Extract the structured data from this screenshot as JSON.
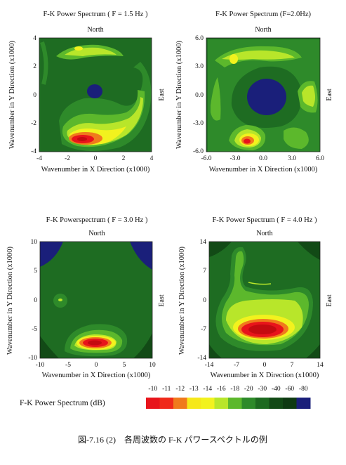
{
  "chart_data": [
    {
      "type": "heatmap",
      "title": "F-K Power Spectrum ( F = 1.5 Hz )",
      "top_label": "North",
      "right_label": "East",
      "xlabel": "Wavenumber in X Direction (x1000)",
      "ylabel": "Wavenumber in Y Direction (x1000)",
      "xlim": [
        -4,
        4
      ],
      "ylim": [
        -4,
        4
      ],
      "xticks": [
        "-4",
        "-2",
        "0",
        "2",
        "4"
      ],
      "yticks": [
        "4",
        "2",
        "0",
        "-2",
        "-4"
      ],
      "peak": {
        "x": -1.0,
        "y": -3.1,
        "level_dB": -10
      }
    },
    {
      "type": "heatmap",
      "title": "F-K Power Spectrum (F=2.0Hz)",
      "top_label": "North",
      "right_label": "East",
      "xlabel": "Wavenumber in X Direction (x1000)",
      "ylabel": "Wavenumber in Y Direction (x1000)",
      "xlim": [
        -6,
        6
      ],
      "ylim": [
        -6,
        6
      ],
      "xticks": [
        "-6.0",
        "-3.0",
        "0.0",
        "3.0",
        "6.0"
      ],
      "yticks": [
        "6.0",
        "3.0",
        "0.0",
        "-3.0",
        "-6.0"
      ],
      "peak": {
        "x": -1.6,
        "y": -5.0,
        "level_dB": -10
      }
    },
    {
      "type": "heatmap",
      "title": "F-K Powerspectrum ( F = 3.0 Hz )",
      "top_label": "North",
      "right_label": "East",
      "xlabel": "Wavenumber in X Direction (x1000)",
      "ylabel": "Wavenumber in Y Direction (x1000)",
      "xlim": [
        -10,
        10
      ],
      "ylim": [
        -10,
        10
      ],
      "xticks": [
        "-10",
        "-5",
        "0",
        "5",
        "10"
      ],
      "yticks": [
        "10",
        "5",
        "0",
        "-5",
        "-10"
      ],
      "peak": {
        "x": -0.5,
        "y": -7.5,
        "level_dB": -10
      }
    },
    {
      "type": "heatmap",
      "title": "F-K Power Spectrum ( F = 4.0 Hz )",
      "top_label": "North",
      "right_label": "East",
      "xlabel": "Wavenumber in X Direction (x1000)",
      "ylabel": "Wavenumber in Y Direction (x1000)",
      "xlim": [
        -14,
        14
      ],
      "ylim": [
        -14,
        14
      ],
      "xticks": [
        "-14",
        "-7",
        "0",
        "7",
        "14"
      ],
      "yticks": [
        "14",
        "7",
        "0",
        "-7",
        "-14"
      ],
      "peak": {
        "x": -0.5,
        "y": -8.5,
        "level_dB": -10
      }
    }
  ],
  "colorbar": {
    "label": "F-K Power Spectrum (dB)",
    "levels": [
      "-10",
      "-11",
      "-12",
      "-13",
      "-14",
      "-16",
      "-18",
      "-20",
      "-30",
      "-40",
      "-60",
      "-80"
    ],
    "colors": [
      "#e8141b",
      "#f02a1a",
      "#f07a1c",
      "#f6e81a",
      "#f2f21e",
      "#b8e62a",
      "#5cb82c",
      "#2e8a2a",
      "#1d6a20",
      "#124a16",
      "#0e3a12",
      "#1a1f7a"
    ]
  },
  "caption": "図-7.16 (2)　各周波数の F-K パワースペクトルの例"
}
